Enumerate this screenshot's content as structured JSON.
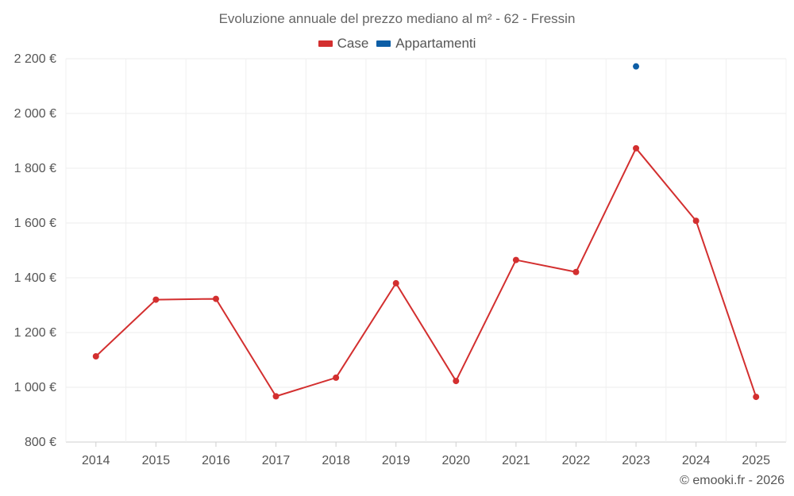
{
  "chart_data": {
    "type": "line",
    "title": "Evoluzione annuale del prezzo mediano al m² - 62 - Fressin",
    "categories": [
      "2014",
      "2015",
      "2016",
      "2017",
      "2018",
      "2019",
      "2020",
      "2021",
      "2022",
      "2023",
      "2024",
      "2025"
    ],
    "ylim": [
      800,
      2200
    ],
    "yticks": [
      800,
      1000,
      1200,
      1400,
      1600,
      1800,
      2000,
      2200
    ],
    "ytick_labels": [
      "800 €",
      "1 000 €",
      "1 200 €",
      "1 400 €",
      "1 600 €",
      "1 800 €",
      "2 000 €",
      "2 200 €"
    ],
    "grid": true,
    "legend_position": "top-center",
    "series": [
      {
        "name": "Case",
        "color": "#d32f2f",
        "values": [
          1113,
          1320,
          1323,
          967,
          1035,
          1380,
          1023,
          1465,
          1421,
          1873,
          1608,
          965
        ]
      },
      {
        "name": "Appartamenti",
        "color": "#0d5ea6",
        "values": [
          null,
          null,
          null,
          null,
          null,
          null,
          null,
          null,
          null,
          2172,
          null,
          null
        ]
      }
    ]
  },
  "credit": "© emooki.fr - 2026"
}
